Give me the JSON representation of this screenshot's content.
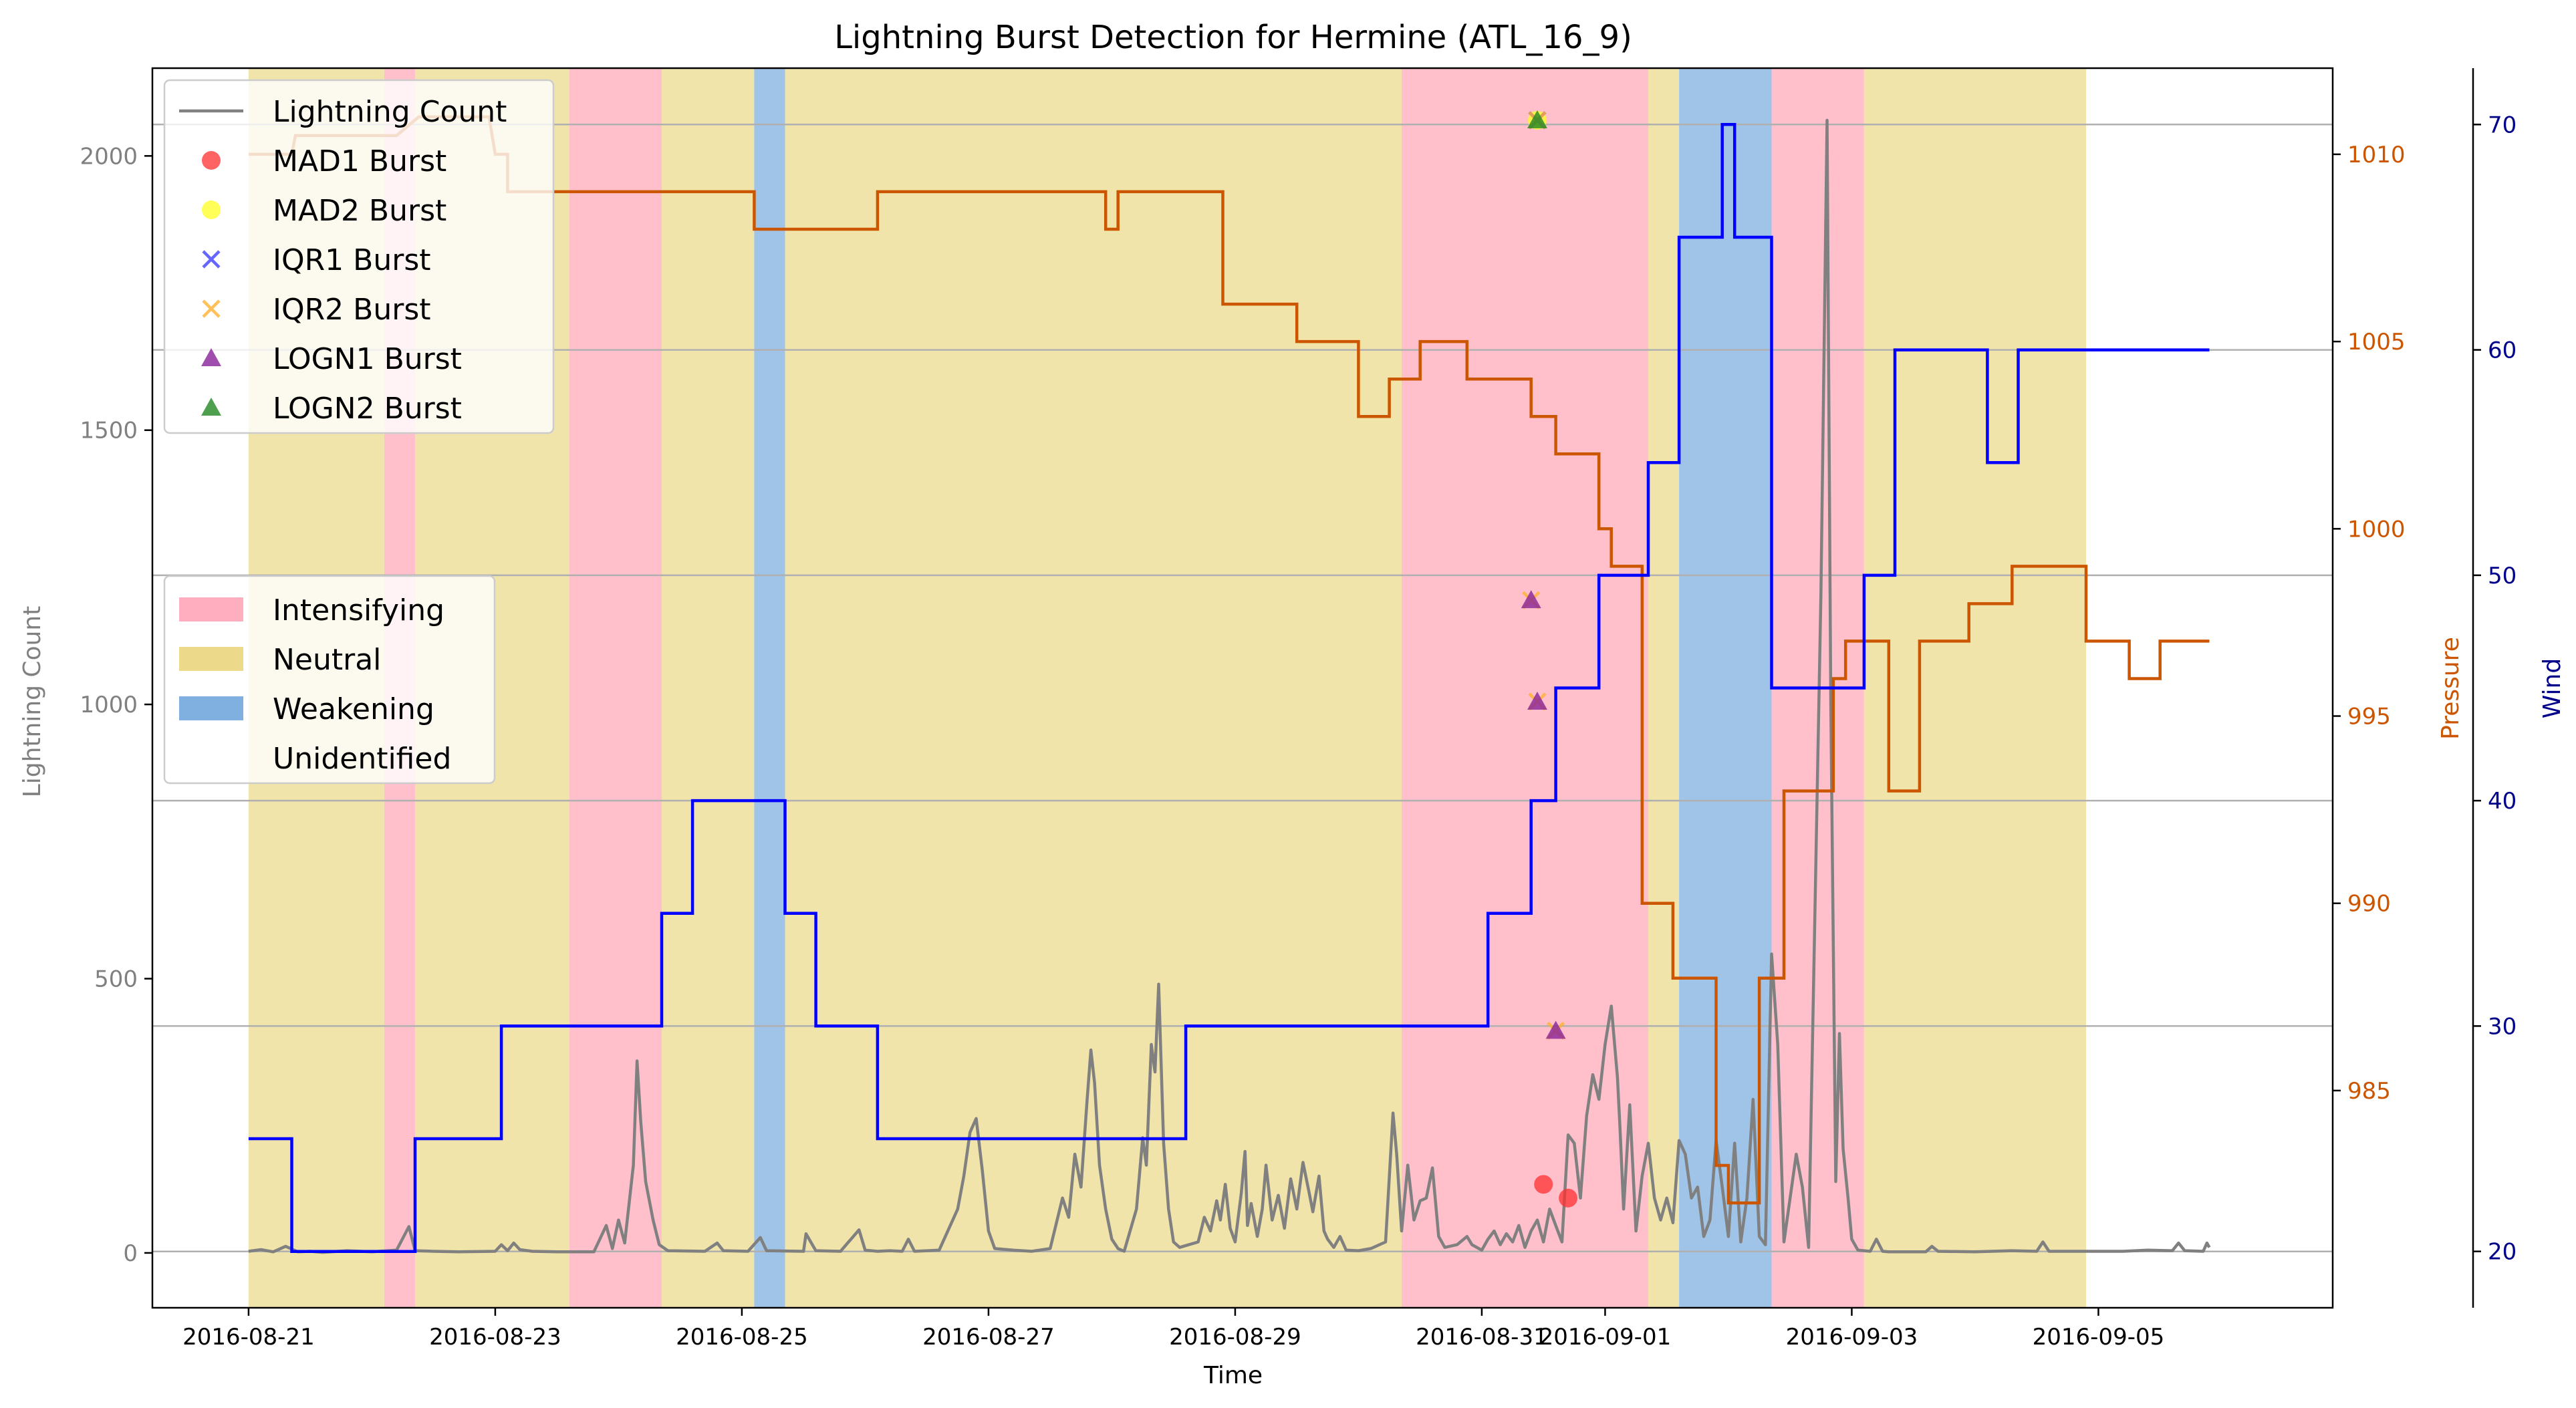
{
  "chart_data": {
    "type": "line",
    "title": "Lightning Burst Detection for Hermine (ATL_16_9)",
    "xlabel": "Time",
    "ylabel_left": "Lightning Count",
    "ylabel_pressure": "Pressure",
    "ylabel_wind": "Wind",
    "x_ticks": [
      "2016-08-21",
      "2016-08-23",
      "2016-08-25",
      "2016-08-27",
      "2016-08-29",
      "2016-08-31",
      "2016-09-01",
      "2016-09-03",
      "2016-09-05"
    ],
    "x_tick_days": [
      0,
      2,
      4,
      6,
      8,
      10,
      11,
      13,
      15
    ],
    "xlim_days": [
      -0.78,
      16.9
    ],
    "y_left": {
      "ylim": [
        -100,
        2160
      ],
      "ticks": [
        0,
        500,
        1000,
        1500,
        2000
      ]
    },
    "y_pressure": {
      "ylim": [
        979.2,
        1012.3
      ],
      "ticks": [
        985,
        990,
        995,
        1000,
        1005,
        1010
      ]
    },
    "y_wind": {
      "ylim": [
        17.5,
        72.5
      ],
      "ticks": [
        20,
        30,
        40,
        50,
        60,
        70
      ]
    },
    "colors": {
      "lightning": "#808080",
      "pressure": "#cc5500",
      "wind": "#0000ff",
      "wind_axis": "#00008b",
      "intensifying": "#ffc0cb",
      "neutral": "#f0e4aa",
      "weakening": "#a0c4e8",
      "mad1": "#ff3030",
      "mad2": "#ffff20",
      "iqr1": "#4040ff",
      "iqr2": "#ffb030",
      "logn1": "#882299",
      "logn2": "#228822"
    },
    "phases": [
      {
        "label": "Neutral",
        "start": 0.0,
        "end": 1.1
      },
      {
        "label": "Intensifying",
        "start": 1.1,
        "end": 1.35
      },
      {
        "label": "Neutral",
        "start": 1.35,
        "end": 2.6
      },
      {
        "label": "Intensifying",
        "start": 2.6,
        "end": 3.35
      },
      {
        "label": "Neutral",
        "start": 3.35,
        "end": 4.1
      },
      {
        "label": "Weakening",
        "start": 4.1,
        "end": 4.35
      },
      {
        "label": "Neutral",
        "start": 4.35,
        "end": 9.35
      },
      {
        "label": "Intensifying",
        "start": 9.35,
        "end": 11.35
      },
      {
        "label": "Neutral",
        "start": 11.35,
        "end": 11.6
      },
      {
        "label": "Weakening",
        "start": 11.6,
        "end": 12.35
      },
      {
        "label": "Intensifying",
        "start": 12.35,
        "end": 13.1
      },
      {
        "label": "Neutral",
        "start": 13.1,
        "end": 14.9
      }
    ],
    "pressure_steps": [
      [
        0.0,
        1010
      ],
      [
        0.35,
        1010
      ],
      [
        0.38,
        1010.5
      ],
      [
        1.2,
        1010.5
      ],
      [
        1.38,
        1011
      ],
      [
        1.95,
        1011
      ],
      [
        2.0,
        1010
      ],
      [
        2.1,
        1010
      ],
      [
        2.1,
        1009
      ],
      [
        4.1,
        1009
      ],
      [
        4.1,
        1008
      ],
      [
        5.1,
        1008
      ],
      [
        5.1,
        1009
      ],
      [
        6.95,
        1009
      ],
      [
        6.95,
        1008
      ],
      [
        7.05,
        1008
      ],
      [
        7.05,
        1009
      ],
      [
        7.9,
        1009
      ],
      [
        7.9,
        1006
      ],
      [
        8.5,
        1006
      ],
      [
        8.5,
        1005
      ],
      [
        9.0,
        1005
      ],
      [
        9.0,
        1003
      ],
      [
        9.25,
        1003
      ],
      [
        9.25,
        1004
      ],
      [
        9.5,
        1004
      ],
      [
        9.5,
        1005
      ],
      [
        9.88,
        1005
      ],
      [
        9.88,
        1004
      ],
      [
        10.4,
        1004
      ],
      [
        10.4,
        1003
      ],
      [
        10.6,
        1003
      ],
      [
        10.6,
        1002
      ],
      [
        10.95,
        1002
      ],
      [
        10.95,
        1000
      ],
      [
        11.05,
        1000
      ],
      [
        11.05,
        999
      ],
      [
        11.3,
        999
      ],
      [
        11.3,
        990
      ],
      [
        11.55,
        990
      ],
      [
        11.55,
        988
      ],
      [
        11.9,
        988
      ],
      [
        11.9,
        983
      ],
      [
        12.0,
        983
      ],
      [
        12.0,
        982
      ],
      [
        12.25,
        982
      ],
      [
        12.25,
        988
      ],
      [
        12.45,
        988
      ],
      [
        12.45,
        993
      ],
      [
        12.85,
        993
      ],
      [
        12.85,
        996
      ],
      [
        12.95,
        996
      ],
      [
        12.95,
        997
      ],
      [
        13.3,
        997
      ],
      [
        13.3,
        993
      ],
      [
        13.55,
        993
      ],
      [
        13.55,
        997
      ],
      [
        13.95,
        997
      ],
      [
        13.95,
        998
      ],
      [
        14.3,
        998
      ],
      [
        14.3,
        999
      ],
      [
        14.9,
        999
      ],
      [
        14.9,
        997
      ],
      [
        15.25,
        997
      ],
      [
        15.25,
        996
      ],
      [
        15.5,
        996
      ],
      [
        15.5,
        997
      ],
      [
        15.9,
        997
      ]
    ],
    "wind_steps": [
      [
        0.0,
        25
      ],
      [
        0.35,
        25
      ],
      [
        0.35,
        20
      ],
      [
        1.35,
        20
      ],
      [
        1.35,
        25
      ],
      [
        2.05,
        25
      ],
      [
        2.05,
        30
      ],
      [
        3.35,
        30
      ],
      [
        3.35,
        35
      ],
      [
        3.6,
        35
      ],
      [
        3.6,
        40
      ],
      [
        4.35,
        40
      ],
      [
        4.35,
        35
      ],
      [
        4.6,
        35
      ],
      [
        4.6,
        30
      ],
      [
        5.1,
        30
      ],
      [
        5.1,
        25
      ],
      [
        7.6,
        25
      ],
      [
        7.6,
        30
      ],
      [
        10.05,
        30
      ],
      [
        10.05,
        35
      ],
      [
        10.4,
        35
      ],
      [
        10.4,
        40
      ],
      [
        10.6,
        40
      ],
      [
        10.6,
        45
      ],
      [
        10.95,
        45
      ],
      [
        10.95,
        50
      ],
      [
        11.35,
        50
      ],
      [
        11.35,
        55
      ],
      [
        11.6,
        55
      ],
      [
        11.6,
        65
      ],
      [
        11.95,
        65
      ],
      [
        11.95,
        70
      ],
      [
        12.05,
        70
      ],
      [
        12.05,
        65
      ],
      [
        12.35,
        65
      ],
      [
        12.35,
        45
      ],
      [
        13.1,
        45
      ],
      [
        13.1,
        50
      ],
      [
        13.35,
        50
      ],
      [
        13.35,
        60
      ],
      [
        14.1,
        60
      ],
      [
        14.1,
        55
      ],
      [
        14.35,
        55
      ],
      [
        14.35,
        60
      ],
      [
        15.9,
        60
      ]
    ],
    "lightning_series": [
      [
        0.0,
        3
      ],
      [
        0.1,
        6
      ],
      [
        0.2,
        2
      ],
      [
        0.3,
        12
      ],
      [
        0.4,
        2
      ],
      [
        0.5,
        3
      ],
      [
        0.6,
        1
      ],
      [
        0.8,
        4
      ],
      [
        1.0,
        2
      ],
      [
        1.2,
        5
      ],
      [
        1.3,
        48
      ],
      [
        1.35,
        4
      ],
      [
        1.5,
        3
      ],
      [
        1.7,
        2
      ],
      [
        2.0,
        3
      ],
      [
        2.05,
        15
      ],
      [
        2.1,
        4
      ],
      [
        2.15,
        18
      ],
      [
        2.2,
        6
      ],
      [
        2.3,
        3
      ],
      [
        2.5,
        2
      ],
      [
        2.8,
        2
      ],
      [
        2.9,
        50
      ],
      [
        2.95,
        8
      ],
      [
        3.0,
        60
      ],
      [
        3.05,
        18
      ],
      [
        3.12,
        160
      ],
      [
        3.15,
        350
      ],
      [
        3.18,
        240
      ],
      [
        3.22,
        130
      ],
      [
        3.28,
        60
      ],
      [
        3.33,
        15
      ],
      [
        3.4,
        4
      ],
      [
        3.7,
        3
      ],
      [
        3.8,
        18
      ],
      [
        3.85,
        4
      ],
      [
        4.05,
        3
      ],
      [
        4.15,
        28
      ],
      [
        4.2,
        4
      ],
      [
        4.5,
        3
      ],
      [
        4.52,
        35
      ],
      [
        4.6,
        4
      ],
      [
        4.8,
        3
      ],
      [
        4.95,
        42
      ],
      [
        5.0,
        5
      ],
      [
        5.1,
        3
      ],
      [
        5.2,
        4
      ],
      [
        5.3,
        3
      ],
      [
        5.35,
        25
      ],
      [
        5.4,
        3
      ],
      [
        5.6,
        5
      ],
      [
        5.75,
        80
      ],
      [
        5.8,
        140
      ],
      [
        5.85,
        220
      ],
      [
        5.9,
        245
      ],
      [
        5.95,
        150
      ],
      [
        6.0,
        40
      ],
      [
        6.05,
        8
      ],
      [
        6.2,
        5
      ],
      [
        6.35,
        3
      ],
      [
        6.5,
        8
      ],
      [
        6.6,
        100
      ],
      [
        6.65,
        65
      ],
      [
        6.7,
        180
      ],
      [
        6.75,
        120
      ],
      [
        6.8,
        280
      ],
      [
        6.83,
        370
      ],
      [
        6.86,
        310
      ],
      [
        6.9,
        160
      ],
      [
        6.95,
        80
      ],
      [
        7.0,
        25
      ],
      [
        7.05,
        8
      ],
      [
        7.1,
        3
      ],
      [
        7.2,
        80
      ],
      [
        7.25,
        210
      ],
      [
        7.28,
        160
      ],
      [
        7.32,
        380
      ],
      [
        7.35,
        330
      ],
      [
        7.38,
        490
      ],
      [
        7.42,
        200
      ],
      [
        7.46,
        80
      ],
      [
        7.5,
        20
      ],
      [
        7.55,
        10
      ],
      [
        7.7,
        20
      ],
      [
        7.75,
        65
      ],
      [
        7.8,
        40
      ],
      [
        7.85,
        95
      ],
      [
        7.88,
        60
      ],
      [
        7.92,
        125
      ],
      [
        7.96,
        45
      ],
      [
        8.0,
        20
      ],
      [
        8.05,
        110
      ],
      [
        8.08,
        185
      ],
      [
        8.1,
        50
      ],
      [
        8.13,
        90
      ],
      [
        8.18,
        30
      ],
      [
        8.22,
        80
      ],
      [
        8.25,
        160
      ],
      [
        8.3,
        60
      ],
      [
        8.35,
        105
      ],
      [
        8.4,
        45
      ],
      [
        8.45,
        135
      ],
      [
        8.5,
        80
      ],
      [
        8.55,
        165
      ],
      [
        8.6,
        110
      ],
      [
        8.63,
        75
      ],
      [
        8.68,
        140
      ],
      [
        8.72,
        40
      ],
      [
        8.75,
        25
      ],
      [
        8.8,
        10
      ],
      [
        8.85,
        30
      ],
      [
        8.9,
        5
      ],
      [
        9.0,
        4
      ],
      [
        9.1,
        8
      ],
      [
        9.22,
        20
      ],
      [
        9.28,
        255
      ],
      [
        9.31,
        180
      ],
      [
        9.35,
        40
      ],
      [
        9.4,
        160
      ],
      [
        9.45,
        60
      ],
      [
        9.5,
        95
      ],
      [
        9.55,
        100
      ],
      [
        9.6,
        155
      ],
      [
        9.65,
        30
      ],
      [
        9.7,
        10
      ],
      [
        9.8,
        15
      ],
      [
        9.88,
        30
      ],
      [
        9.92,
        15
      ],
      [
        10.0,
        5
      ],
      [
        10.05,
        25
      ],
      [
        10.1,
        40
      ],
      [
        10.15,
        15
      ],
      [
        10.2,
        35
      ],
      [
        10.25,
        20
      ],
      [
        10.3,
        50
      ],
      [
        10.35,
        10
      ],
      [
        10.4,
        40
      ],
      [
        10.45,
        60
      ],
      [
        10.5,
        20
      ],
      [
        10.55,
        80
      ],
      [
        10.6,
        50
      ],
      [
        10.65,
        20
      ],
      [
        10.7,
        215
      ],
      [
        10.75,
        200
      ],
      [
        10.8,
        100
      ],
      [
        10.85,
        250
      ],
      [
        10.9,
        325
      ],
      [
        10.95,
        280
      ],
      [
        11.0,
        380
      ],
      [
        11.05,
        450
      ],
      [
        11.1,
        320
      ],
      [
        11.12,
        230
      ],
      [
        11.15,
        80
      ],
      [
        11.2,
        270
      ],
      [
        11.25,
        40
      ],
      [
        11.3,
        140
      ],
      [
        11.35,
        200
      ],
      [
        11.4,
        100
      ],
      [
        11.45,
        60
      ],
      [
        11.5,
        100
      ],
      [
        11.55,
        55
      ],
      [
        11.6,
        205
      ],
      [
        11.65,
        180
      ],
      [
        11.7,
        100
      ],
      [
        11.75,
        120
      ],
      [
        11.8,
        30
      ],
      [
        11.85,
        60
      ],
      [
        11.9,
        205
      ],
      [
        11.95,
        120
      ],
      [
        12.0,
        30
      ],
      [
        12.05,
        200
      ],
      [
        12.1,
        20
      ],
      [
        12.15,
        100
      ],
      [
        12.2,
        280
      ],
      [
        12.25,
        30
      ],
      [
        12.3,
        15
      ],
      [
        12.35,
        545
      ],
      [
        12.4,
        380
      ],
      [
        12.45,
        20
      ],
      [
        12.55,
        180
      ],
      [
        12.6,
        120
      ],
      [
        12.65,
        10
      ],
      [
        12.75,
        1200
      ],
      [
        12.8,
        2065
      ],
      [
        12.83,
        1000
      ],
      [
        12.87,
        130
      ],
      [
        12.9,
        400
      ],
      [
        12.93,
        190
      ],
      [
        12.97,
        100
      ],
      [
        13.0,
        25
      ],
      [
        13.05,
        5
      ],
      [
        13.15,
        3
      ],
      [
        13.2,
        25
      ],
      [
        13.25,
        3
      ],
      [
        13.3,
        2
      ],
      [
        13.6,
        2
      ],
      [
        13.65,
        12
      ],
      [
        13.7,
        3
      ],
      [
        14.0,
        2
      ],
      [
        14.3,
        4
      ],
      [
        14.5,
        3
      ],
      [
        14.55,
        20
      ],
      [
        14.6,
        3
      ],
      [
        14.8,
        3
      ],
      [
        15.2,
        3
      ],
      [
        15.4,
        5
      ],
      [
        15.6,
        4
      ],
      [
        15.65,
        18
      ],
      [
        15.7,
        4
      ],
      [
        15.85,
        3
      ],
      [
        15.88,
        18
      ],
      [
        15.9,
        10
      ]
    ],
    "bursts": {
      "mad1": [
        {
          "x": 10.5,
          "y": 125
        },
        {
          "x": 10.7,
          "y": 100
        }
      ],
      "mad2": [
        {
          "x": 10.45,
          "y": 2065
        }
      ],
      "iqr1": [
        {
          "x": 10.45,
          "y": 2065
        }
      ],
      "iqr2": [
        {
          "x": 10.45,
          "y": 2065
        },
        {
          "x": 10.4,
          "y": 1190
        },
        {
          "x": 10.45,
          "y": 1005
        },
        {
          "x": 10.6,
          "y": 405
        }
      ],
      "logn1": [
        {
          "x": 10.4,
          "y": 1190
        },
        {
          "x": 10.45,
          "y": 1005
        },
        {
          "x": 10.6,
          "y": 405
        }
      ],
      "logn2": [
        {
          "x": 10.45,
          "y": 2065
        }
      ]
    },
    "legend_series": [
      {
        "key": "lightning",
        "label": "Lightning Count"
      },
      {
        "key": "mad1",
        "label": "MAD1 Burst"
      },
      {
        "key": "mad2",
        "label": "MAD2 Burst"
      },
      {
        "key": "iqr1",
        "label": "IQR1 Burst"
      },
      {
        "key": "iqr2",
        "label": "IQR2 Burst"
      },
      {
        "key": "logn1",
        "label": "LOGN1 Burst"
      },
      {
        "key": "logn2",
        "label": "LOGN2 Burst"
      }
    ],
    "legend_phases": [
      {
        "key": "intensifying",
        "label": "Intensifying"
      },
      {
        "key": "neutral",
        "label": "Neutral"
      },
      {
        "key": "weakening",
        "label": "Weakening"
      },
      {
        "key": "unidentified",
        "label": "Unidentified"
      }
    ],
    "grid": true,
    "legend_placement": "upper-left"
  }
}
